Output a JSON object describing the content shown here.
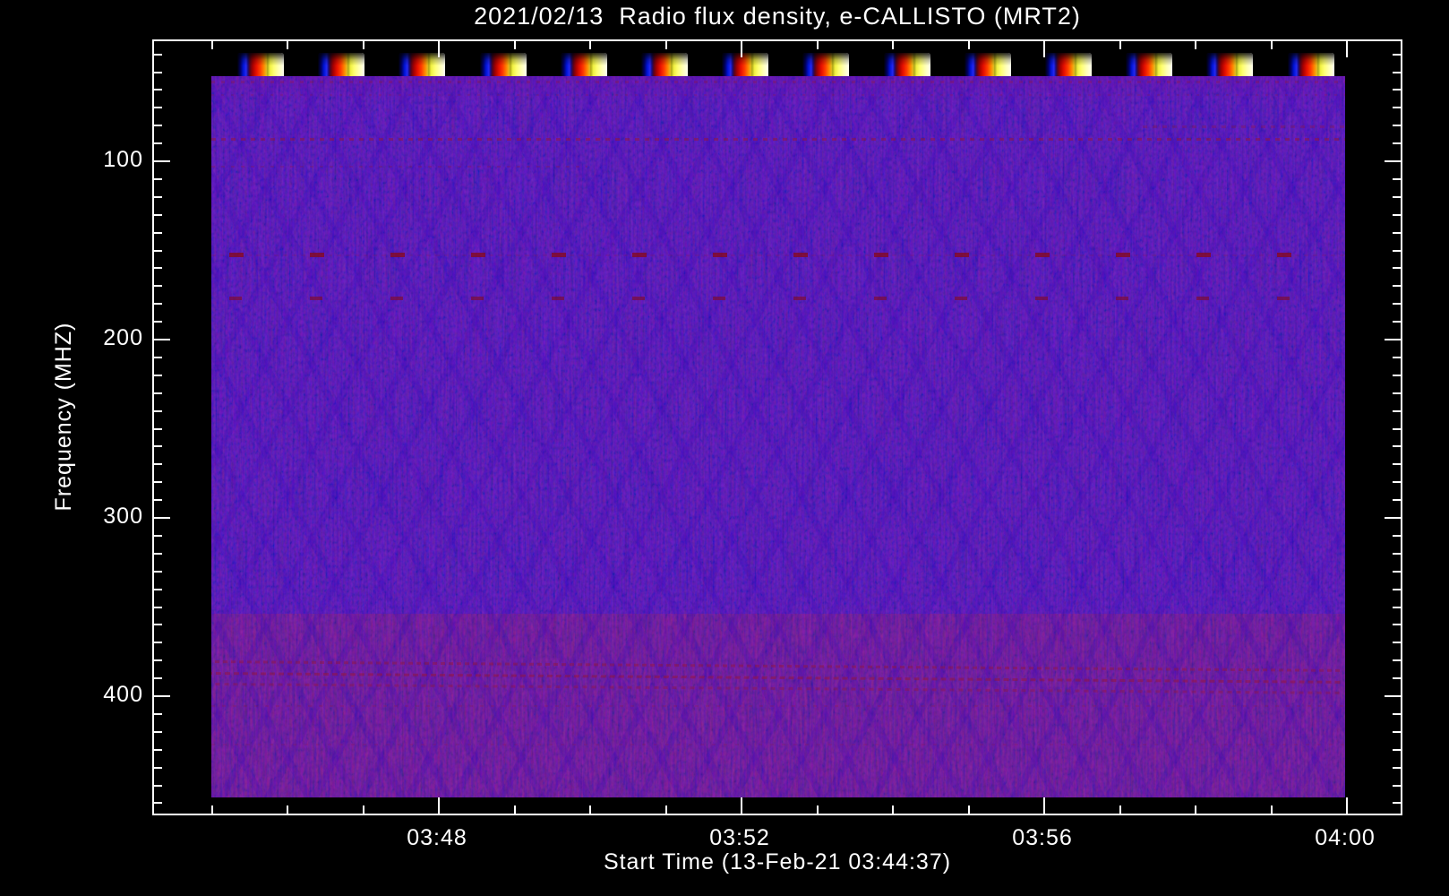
{
  "chart_data": {
    "type": "heatmap",
    "title": "2021/02/13  Radio flux density, e-CALLISTO (MRT2)",
    "xlabel": "Start Time (13-Feb-21 03:44:37)",
    "ylabel": "Frequency (MHZ)",
    "x_ticks": [
      "03:48",
      "03:52",
      "03:56",
      "04:00"
    ],
    "y_ticks": [
      "100",
      "200",
      "300",
      "400"
    ],
    "x_minor_tick_interval_minutes": 1,
    "y_minor_tick_interval_mhz": 10,
    "y_axis_direction": "frequency increases downward",
    "axis_color": "#ffffff",
    "frame_background_color": "#000000",
    "quiet_background_color": "#1c08ee",
    "legend": "none",
    "grid": "off",
    "observations": {
      "calibration_bursts": {
        "count": 14,
        "location": "top rows of spectrogram (lowest displayed frequencies, ~45-55 MHz)",
        "appearance": "regular ~1-minute bursts ramping blue -> dark red -> red -> orange -> yellow -> near-white",
        "colors": [
          "#0014d8",
          "#a80000",
          "#ff3c00",
          "#ff8800",
          "#ffff70",
          "#ffffe0"
        ]
      },
      "interference_lines_mhz": [
        56,
        64,
        81,
        88,
        104,
        153,
        176,
        382,
        388,
        394,
        408,
        428
      ],
      "overall": "quiet blue background with faint purple moire texture; no solar burst activity in main band"
    }
  }
}
